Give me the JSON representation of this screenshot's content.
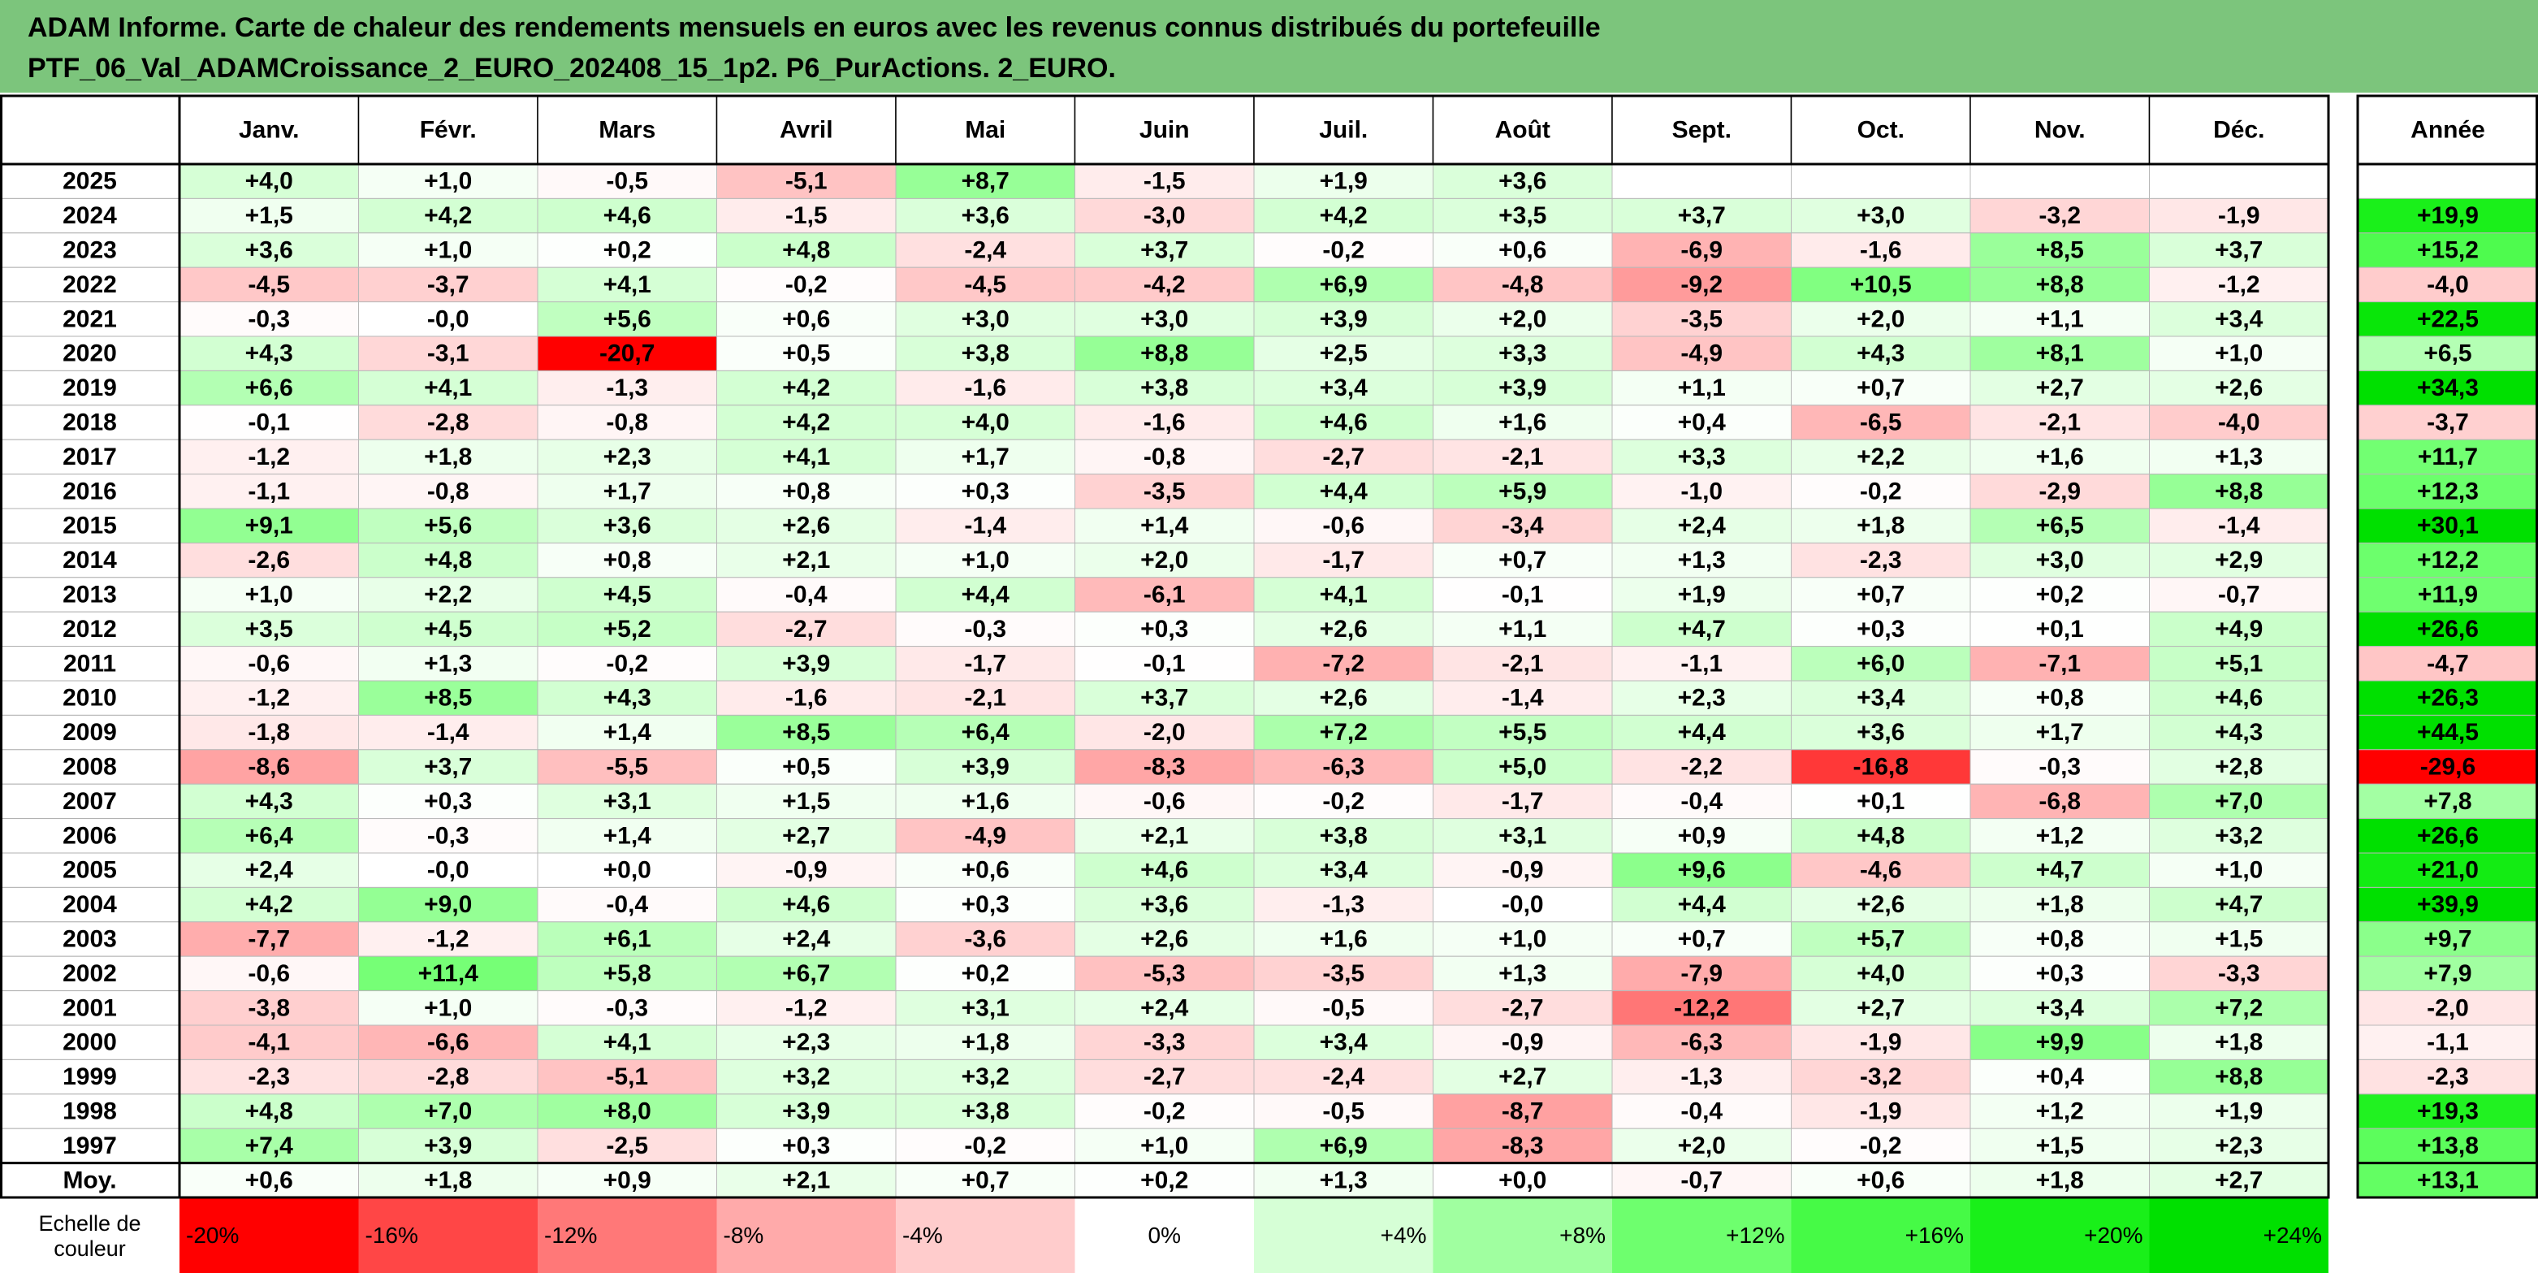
{
  "title": {
    "line1": "ADAM Informe. Carte de chaleur des rendements mensuels en euros avec les revenus connus distribués du portefeuille",
    "line2": "PTF_06_Val_ADAMCroissance_2_EURO_202408_15_1p2. P6_PurActions. 2_EURO."
  },
  "colors": {
    "title_bg": "#7cc57c",
    "neg_max": "#ff0000",
    "neutral": "#ffffff",
    "pos_max": "#00e000"
  },
  "chart_data": {
    "type": "heatmap",
    "months": [
      "Janv.",
      "Févr.",
      "Mars",
      "Avril",
      "Mai",
      "Juin",
      "Juil.",
      "Août",
      "Sept.",
      "Oct.",
      "Nov.",
      "Déc."
    ],
    "annual_label": "Année",
    "avg_label": "Moy.",
    "scale_label": "Echelle de couleur",
    "scale_range": [
      -20,
      24
    ],
    "rows": [
      {
        "year": "2025",
        "values": [
          "+4,0",
          "+1,0",
          "-0,5",
          "-5,1",
          "+8,7",
          "-1,5",
          "+1,9",
          "+3,6",
          "",
          "",
          "",
          ""
        ],
        "annual": ""
      },
      {
        "year": "2024",
        "values": [
          "+1,5",
          "+4,2",
          "+4,6",
          "-1,5",
          "+3,6",
          "-3,0",
          "+4,2",
          "+3,5",
          "+3,7",
          "+3,0",
          "-3,2",
          "-1,9"
        ],
        "annual": "+19,9"
      },
      {
        "year": "2023",
        "values": [
          "+3,6",
          "+1,0",
          "+0,2",
          "+4,8",
          "-2,4",
          "+3,7",
          "-0,2",
          "+0,6",
          "-6,9",
          "-1,6",
          "+8,5",
          "+3,7"
        ],
        "annual": "+15,2"
      },
      {
        "year": "2022",
        "values": [
          "-4,5",
          "-3,7",
          "+4,1",
          "-0,2",
          "-4,5",
          "-4,2",
          "+6,9",
          "-4,8",
          "-9,2",
          "+10,5",
          "+8,8",
          "-1,2"
        ],
        "annual": "-4,0"
      },
      {
        "year": "2021",
        "values": [
          "-0,3",
          "-0,0",
          "+5,6",
          "+0,6",
          "+3,0",
          "+3,0",
          "+3,9",
          "+2,0",
          "-3,5",
          "+2,0",
          "+1,1",
          "+3,4"
        ],
        "annual": "+22,5"
      },
      {
        "year": "2020",
        "values": [
          "+4,3",
          "-3,1",
          "-20,7",
          "+0,5",
          "+3,8",
          "+8,8",
          "+2,5",
          "+3,3",
          "-4,9",
          "+4,3",
          "+8,1",
          "+1,0"
        ],
        "annual": "+6,5"
      },
      {
        "year": "2019",
        "values": [
          "+6,6",
          "+4,1",
          "-1,3",
          "+4,2",
          "-1,6",
          "+3,8",
          "+3,4",
          "+3,9",
          "+1,1",
          "+0,7",
          "+2,7",
          "+2,6"
        ],
        "annual": "+34,3"
      },
      {
        "year": "2018",
        "values": [
          "-0,1",
          "-2,8",
          "-0,8",
          "+4,2",
          "+4,0",
          "-1,6",
          "+4,6",
          "+1,6",
          "+0,4",
          "-6,5",
          "-2,1",
          "-4,0"
        ],
        "annual": "-3,7"
      },
      {
        "year": "2017",
        "values": [
          "-1,2",
          "+1,8",
          "+2,3",
          "+4,1",
          "+1,7",
          "-0,8",
          "-2,7",
          "-2,1",
          "+3,3",
          "+2,2",
          "+1,6",
          "+1,3"
        ],
        "annual": "+11,7"
      },
      {
        "year": "2016",
        "values": [
          "-1,1",
          "-0,8",
          "+1,7",
          "+0,8",
          "+0,3",
          "-3,5",
          "+4,4",
          "+5,9",
          "-1,0",
          "-0,2",
          "-2,9",
          "+8,8"
        ],
        "annual": "+12,3"
      },
      {
        "year": "2015",
        "values": [
          "+9,1",
          "+5,6",
          "+3,6",
          "+2,6",
          "-1,4",
          "+1,4",
          "-0,6",
          "-3,4",
          "+2,4",
          "+1,8",
          "+6,5",
          "-1,4"
        ],
        "annual": "+30,1"
      },
      {
        "year": "2014",
        "values": [
          "-2,6",
          "+4,8",
          "+0,8",
          "+2,1",
          "+1,0",
          "+2,0",
          "-1,7",
          "+0,7",
          "+1,3",
          "-2,3",
          "+3,0",
          "+2,9"
        ],
        "annual": "+12,2"
      },
      {
        "year": "2013",
        "values": [
          "+1,0",
          "+2,2",
          "+4,5",
          "-0,4",
          "+4,4",
          "-6,1",
          "+4,1",
          "-0,1",
          "+1,9",
          "+0,7",
          "+0,2",
          "-0,7"
        ],
        "annual": "+11,9"
      },
      {
        "year": "2012",
        "values": [
          "+3,5",
          "+4,5",
          "+5,2",
          "-2,7",
          "-0,3",
          "+0,3",
          "+2,6",
          "+1,1",
          "+4,7",
          "+0,3",
          "+0,1",
          "+4,9"
        ],
        "annual": "+26,6"
      },
      {
        "year": "2011",
        "values": [
          "-0,6",
          "+1,3",
          "-0,2",
          "+3,9",
          "-1,7",
          "-0,1",
          "-7,2",
          "-2,1",
          "-1,1",
          "+6,0",
          "-7,1",
          "+5,1"
        ],
        "annual": "-4,7"
      },
      {
        "year": "2010",
        "values": [
          "-1,2",
          "+8,5",
          "+4,3",
          "-1,6",
          "-2,1",
          "+3,7",
          "+2,6",
          "-1,4",
          "+2,3",
          "+3,4",
          "+0,8",
          "+4,6"
        ],
        "annual": "+26,3"
      },
      {
        "year": "2009",
        "values": [
          "-1,8",
          "-1,4",
          "+1,4",
          "+8,5",
          "+6,4",
          "-2,0",
          "+7,2",
          "+5,5",
          "+4,4",
          "+3,6",
          "+1,7",
          "+4,3"
        ],
        "annual": "+44,5"
      },
      {
        "year": "2008",
        "values": [
          "-8,6",
          "+3,7",
          "-5,5",
          "+0,5",
          "+3,9",
          "-8,3",
          "-6,3",
          "+5,0",
          "-2,2",
          "-16,8",
          "-0,3",
          "+2,8"
        ],
        "annual": "-29,6"
      },
      {
        "year": "2007",
        "values": [
          "+4,3",
          "+0,3",
          "+3,1",
          "+1,5",
          "+1,6",
          "-0,6",
          "-0,2",
          "-1,7",
          "-0,4",
          "+0,1",
          "-6,8",
          "+7,0"
        ],
        "annual": "+7,8"
      },
      {
        "year": "2006",
        "values": [
          "+6,4",
          "-0,3",
          "+1,4",
          "+2,7",
          "-4,9",
          "+2,1",
          "+3,8",
          "+3,1",
          "+0,9",
          "+4,8",
          "+1,2",
          "+3,2"
        ],
        "annual": "+26,6"
      },
      {
        "year": "2005",
        "values": [
          "+2,4",
          "-0,0",
          "+0,0",
          "-0,9",
          "+0,6",
          "+4,6",
          "+3,4",
          "-0,9",
          "+9,6",
          "-4,6",
          "+4,7",
          "+1,0"
        ],
        "annual": "+21,0"
      },
      {
        "year": "2004",
        "values": [
          "+4,2",
          "+9,0",
          "-0,4",
          "+4,6",
          "+0,3",
          "+3,6",
          "-1,3",
          "-0,0",
          "+4,4",
          "+2,6",
          "+1,8",
          "+4,7"
        ],
        "annual": "+39,9"
      },
      {
        "year": "2003",
        "values": [
          "-7,7",
          "-1,2",
          "+6,1",
          "+2,4",
          "-3,6",
          "+2,6",
          "+1,6",
          "+1,0",
          "+0,7",
          "+5,7",
          "+0,8",
          "+1,5"
        ],
        "annual": "+9,7"
      },
      {
        "year": "2002",
        "values": [
          "-0,6",
          "+11,4",
          "+5,8",
          "+6,7",
          "+0,2",
          "-5,3",
          "-3,5",
          "+1,3",
          "-7,9",
          "+4,0",
          "+0,3",
          "-3,3"
        ],
        "annual": "+7,9"
      },
      {
        "year": "2001",
        "values": [
          "-3,8",
          "+1,0",
          "-0,3",
          "-1,2",
          "+3,1",
          "+2,4",
          "-0,5",
          "-2,7",
          "-12,2",
          "+2,7",
          "+3,4",
          "+7,2"
        ],
        "annual": "-2,0"
      },
      {
        "year": "2000",
        "values": [
          "-4,1",
          "-6,6",
          "+4,1",
          "+2,3",
          "+1,8",
          "-3,3",
          "+3,4",
          "-0,9",
          "-6,3",
          "-1,9",
          "+9,9",
          "+1,8"
        ],
        "annual": "-1,1"
      },
      {
        "year": "1999",
        "values": [
          "-2,3",
          "-2,8",
          "-5,1",
          "+3,2",
          "+3,2",
          "-2,7",
          "-2,4",
          "+2,7",
          "-1,3",
          "-3,2",
          "+0,4",
          "+8,8"
        ],
        "annual": "-2,3"
      },
      {
        "year": "1998",
        "values": [
          "+4,8",
          "+7,0",
          "+8,0",
          "+3,9",
          "+3,8",
          "-0,2",
          "-0,5",
          "-8,7",
          "-0,4",
          "-1,9",
          "+1,2",
          "+1,9"
        ],
        "annual": "+19,3"
      },
      {
        "year": "1997",
        "values": [
          "+7,4",
          "+3,9",
          "-2,5",
          "+0,3",
          "-0,2",
          "+1,0",
          "+6,9",
          "-8,3",
          "+2,0",
          "-0,2",
          "+1,5",
          "+2,3"
        ],
        "annual": "+13,8"
      }
    ],
    "average": {
      "values": [
        "+0,6",
        "+1,8",
        "+0,9",
        "+2,1",
        "+0,7",
        "+0,2",
        "+1,3",
        "+0,0",
        "-0,7",
        "+0,6",
        "+1,8",
        "+2,7"
      ],
      "annual": "+13,1"
    },
    "scale": [
      {
        "label": "-20%",
        "value": -20
      },
      {
        "label": "-16%",
        "value": -16
      },
      {
        "label": "-12%",
        "value": -12
      },
      {
        "label": "-8%",
        "value": -8
      },
      {
        "label": "-4%",
        "value": -4
      },
      {
        "label": "0%",
        "value": 0
      },
      {
        "label": "+4%",
        "value": 4
      },
      {
        "label": "+8%",
        "value": 8
      },
      {
        "label": "+12%",
        "value": 12
      },
      {
        "label": "+16%",
        "value": 16
      },
      {
        "label": "+20%",
        "value": 20
      },
      {
        "label": "+24%",
        "value": 24
      }
    ]
  }
}
